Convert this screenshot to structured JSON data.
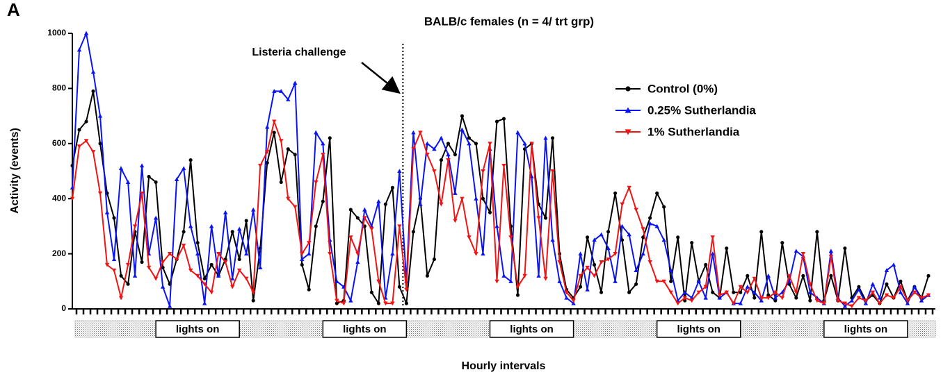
{
  "chart_data": {
    "type": "line",
    "panel_label": "A",
    "title": "BALB/c females (n = 4/ trt grp)",
    "xlabel": "Hourly intervals",
    "ylabel": "Activity (events)",
    "annotation": {
      "text": "Listeria challenge",
      "x": 47.5
    },
    "light_periods": [
      {
        "label": "lights on",
        "start": 12,
        "end": 24
      },
      {
        "label": "lights on",
        "start": 36,
        "end": 48
      },
      {
        "label": "lights on",
        "start": 60,
        "end": 72
      },
      {
        "label": "lights on",
        "start": 84,
        "end": 96
      },
      {
        "label": "lights on",
        "start": 108,
        "end": 120
      }
    ],
    "xlim": [
      0,
      124
    ],
    "ylim": [
      0,
      1000
    ],
    "yticks": [
      0,
      200,
      400,
      600,
      800,
      1000
    ],
    "xticks": [
      0,
      1,
      2,
      3,
      4,
      5,
      6,
      7,
      8,
      9,
      10,
      11,
      12,
      13,
      14,
      15,
      16,
      17,
      18,
      19,
      20,
      21,
      22,
      23,
      24,
      25,
      26,
      27,
      28,
      29,
      30,
      31,
      32,
      33,
      34,
      35,
      36,
      37,
      38,
      39,
      40,
      41,
      42,
      43,
      44,
      45,
      46,
      47,
      48,
      49,
      50,
      51,
      52,
      53,
      54,
      55,
      56,
      57,
      58,
      59,
      60,
      61,
      62,
      63,
      64,
      65,
      66,
      67,
      68,
      69,
      70,
      71,
      72,
      73,
      74,
      75,
      76,
      77,
      78,
      79,
      80,
      81,
      82,
      83,
      84,
      85,
      86,
      87,
      88,
      89,
      90,
      91,
      92,
      93,
      94,
      95,
      96,
      97,
      98,
      99,
      100,
      101,
      102,
      103,
      104,
      105,
      106,
      107,
      108,
      109,
      110,
      111,
      112,
      113,
      114,
      115,
      116,
      117,
      118,
      119,
      120,
      121,
      122,
      123
    ],
    "x": [
      0,
      1,
      2,
      3,
      4,
      5,
      6,
      7,
      8,
      9,
      10,
      11,
      12,
      13,
      14,
      15,
      16,
      17,
      18,
      19,
      20,
      21,
      22,
      23,
      24,
      25,
      26,
      27,
      28,
      29,
      30,
      31,
      32,
      33,
      34,
      35,
      36,
      37,
      38,
      39,
      40,
      41,
      42,
      43,
      44,
      45,
      46,
      47,
      48,
      49,
      50,
      51,
      52,
      53,
      54,
      55,
      56,
      57,
      58,
      59,
      60,
      61,
      62,
      63,
      64,
      65,
      66,
      67,
      68,
      69,
      70,
      71,
      72,
      73,
      74,
      75,
      76,
      77,
      78,
      79,
      80,
      81,
      82,
      83,
      84,
      85,
      86,
      87,
      88,
      89,
      90,
      91,
      92,
      93,
      94,
      95,
      96,
      97,
      98,
      99,
      100,
      101,
      102,
      103,
      104,
      105,
      106,
      107,
      108,
      109,
      110,
      111,
      112,
      113,
      114,
      115,
      116,
      117,
      118,
      119,
      120,
      121,
      122,
      123
    ],
    "legend": "upper right",
    "series": [
      {
        "name": "Control (0%)",
        "color": "#000000",
        "marker": "circle",
        "values": [
          520,
          650,
          680,
          790,
          600,
          420,
          330,
          120,
          90,
          280,
          170,
          480,
          460,
          150,
          90,
          180,
          280,
          540,
          240,
          110,
          160,
          120,
          180,
          280,
          180,
          320,
          30,
          220,
          530,
          640,
          460,
          580,
          560,
          160,
          70,
          300,
          390,
          620,
          20,
          30,
          360,
          330,
          300,
          60,
          20,
          380,
          440,
          80,
          20,
          280,
          400,
          120,
          180,
          540,
          600,
          560,
          700,
          620,
          600,
          400,
          350,
          680,
          690,
          300,
          50,
          580,
          600,
          380,
          330,
          620,
          200,
          70,
          40,
          80,
          260,
          160,
          60,
          280,
          420,
          250,
          60,
          90,
          260,
          330,
          420,
          370,
          100,
          260,
          30,
          240,
          100,
          160,
          60,
          40,
          220,
          60,
          60,
          120,
          40,
          280,
          50,
          30,
          240,
          90,
          40,
          120,
          30,
          280,
          30,
          120,
          30,
          220,
          40,
          80,
          30,
          50,
          20,
          90,
          40,
          100,
          30,
          80,
          40,
          120
        ]
      },
      {
        "name": "0.25% Sutherlandia",
        "color": "#0a14f0",
        "marker": "triangle-up",
        "values": [
          440,
          940,
          1000,
          860,
          700,
          350,
          180,
          510,
          460,
          120,
          520,
          200,
          330,
          80,
          10,
          470,
          510,
          300,
          200,
          20,
          300,
          120,
          350,
          110,
          290,
          200,
          360,
          150,
          660,
          790,
          790,
          760,
          820,
          180,
          200,
          640,
          600,
          250,
          100,
          80,
          30,
          170,
          360,
          300,
          390,
          40,
          200,
          500,
          100,
          640,
          380,
          600,
          580,
          620,
          560,
          420,
          650,
          600,
          400,
          200,
          580,
          300,
          120,
          100,
          640,
          600,
          480,
          120,
          620,
          250,
          100,
          40,
          20,
          200,
          70,
          250,
          270,
          220,
          100,
          300,
          270,
          140,
          200,
          310,
          300,
          250,
          140,
          30,
          60,
          40,
          100,
          40,
          200,
          40,
          60,
          20,
          20,
          80,
          60,
          30,
          120,
          40,
          60,
          100,
          210,
          190,
          60,
          40,
          20,
          210,
          40,
          10,
          30,
          70,
          20,
          90,
          40,
          140,
          160,
          60,
          20,
          80,
          30,
          50
        ]
      },
      {
        "name": "1% Sutherlandia",
        "color": "#f01414",
        "marker": "triangle-down",
        "values": [
          400,
          590,
          610,
          570,
          420,
          160,
          140,
          40,
          160,
          300,
          420,
          150,
          110,
          170,
          200,
          180,
          230,
          140,
          120,
          90,
          60,
          200,
          170,
          80,
          140,
          110,
          60,
          520,
          570,
          680,
          610,
          400,
          370,
          200,
          240,
          460,
          560,
          200,
          30,
          20,
          260,
          200,
          330,
          290,
          100,
          20,
          20,
          300,
          70,
          580,
          640,
          560,
          500,
          380,
          540,
          320,
          400,
          260,
          200,
          500,
          600,
          100,
          520,
          260,
          80,
          120,
          600,
          330,
          110,
          500,
          170,
          60,
          30,
          120,
          150,
          120,
          170,
          180,
          200,
          380,
          440,
          360,
          290,
          170,
          100,
          100,
          60,
          20,
          40,
          30,
          60,
          80,
          260,
          50,
          60,
          20,
          80,
          60,
          110,
          40,
          40,
          60,
          40,
          120,
          60,
          200,
          90,
          30,
          20,
          190,
          30,
          20,
          10,
          40,
          30,
          60,
          20,
          50,
          40,
          80,
          30,
          60,
          40,
          50
        ]
      }
    ]
  }
}
